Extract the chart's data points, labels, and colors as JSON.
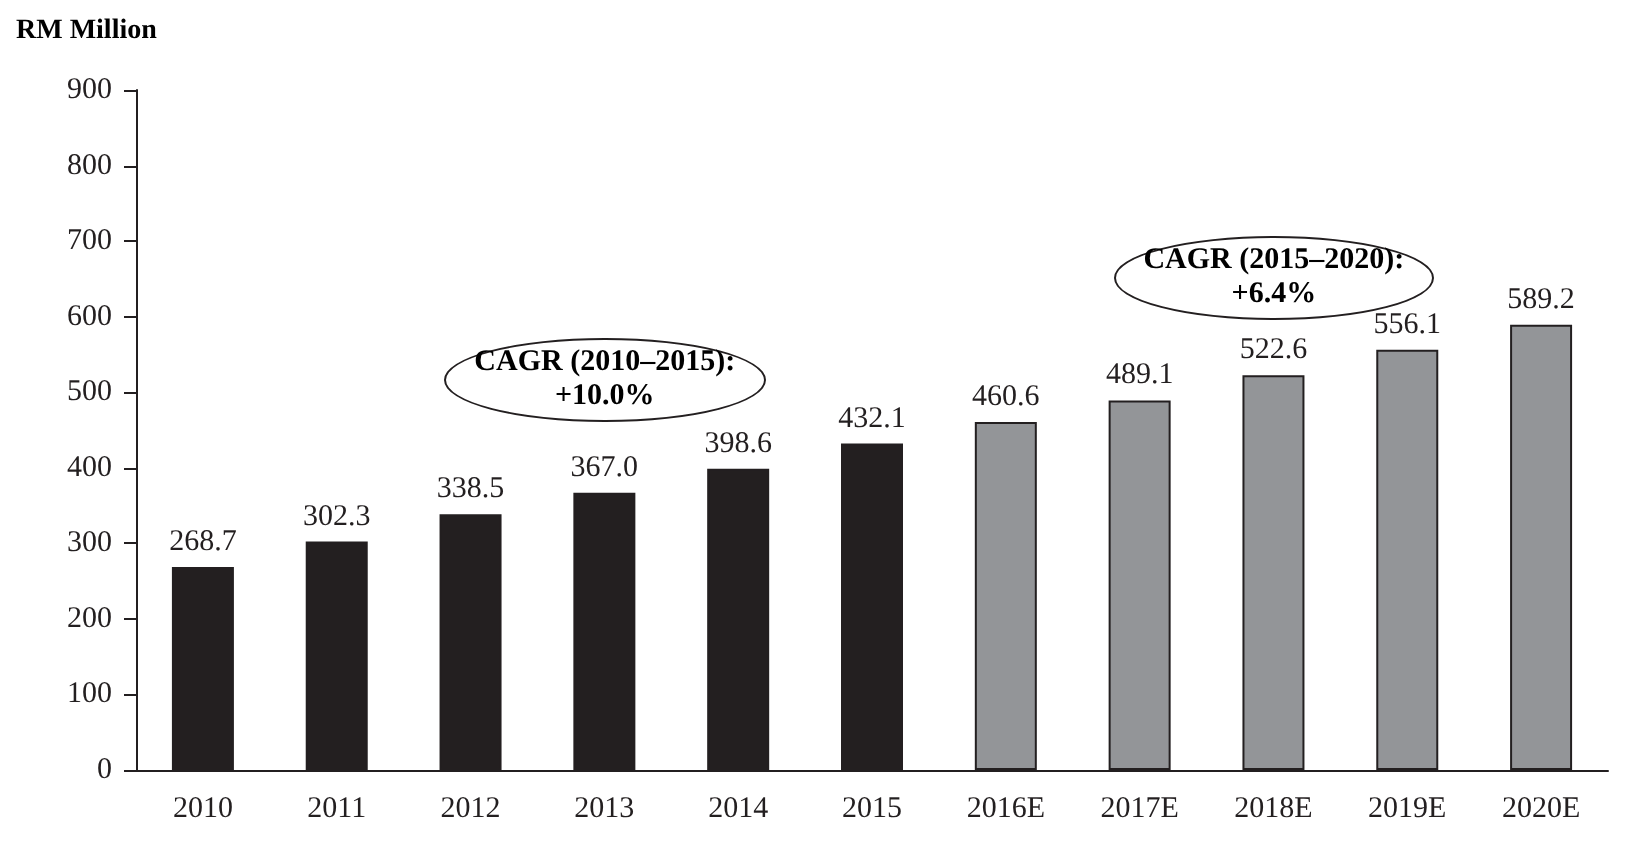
{
  "chart_data": {
    "type": "bar",
    "ylabel": "RM Million",
    "categories": [
      "2010",
      "2011",
      "2012",
      "2013",
      "2014",
      "2015",
      "2016E",
      "2017E",
      "2018E",
      "2019E",
      "2020E"
    ],
    "values": [
      268.7,
      302.3,
      338.5,
      367.0,
      398.6,
      432.1,
      460.6,
      489.1,
      522.6,
      556.1,
      589.2
    ],
    "colors": [
      "#231f20",
      "#231f20",
      "#231f20",
      "#231f20",
      "#231f20",
      "#231f20",
      "#939598",
      "#939598",
      "#939598",
      "#939598",
      "#939598"
    ],
    "ylim": [
      0,
      900
    ],
    "yticks": [
      0,
      100,
      200,
      300,
      400,
      500,
      600,
      700,
      800,
      900
    ],
    "value_labels": [
      "268.7",
      "302.3",
      "338.5",
      "367.0",
      "398.6",
      "432.1",
      "460.6",
      "489.1",
      "522.6",
      "556.1",
      "589.2"
    ],
    "grid": false,
    "annotations": [
      "CAGR (2010–2015):\n+10.0%",
      "CAGR (2015–2020):\n+6.4%"
    ]
  }
}
